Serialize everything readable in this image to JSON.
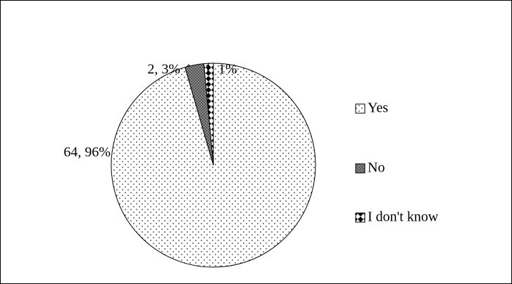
{
  "chart_data": {
    "type": "pie",
    "categories": [
      "Yes",
      "No",
      "I don't know"
    ],
    "values": [
      64,
      2,
      1
    ],
    "value_labels": [
      "64, 96%",
      "2, 3%",
      "1, 1%"
    ],
    "legend": "right"
  }
}
